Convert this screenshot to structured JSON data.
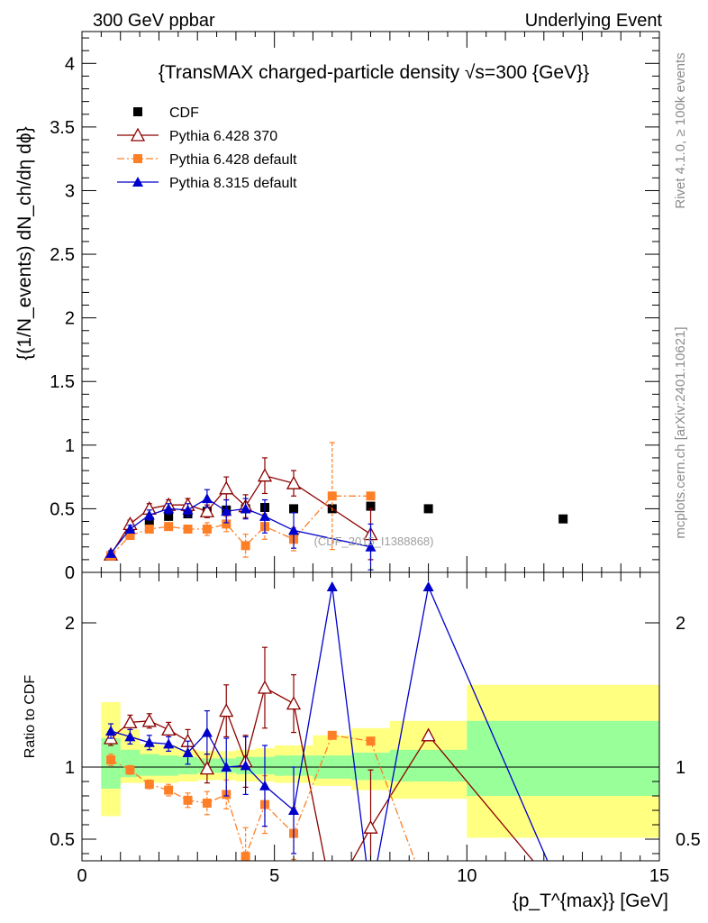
{
  "header": {
    "left": "300 GeV ppbar",
    "right": "Underlying Event"
  },
  "side_labels": {
    "rivet": "Rivet 4.1.0, ≥ 100k events",
    "mcplots": "mcplots.cern.ch [arXiv:2401.10621]"
  },
  "watermark": "(CDF_2015_I1388868)",
  "chart_data": [
    {
      "type": "line",
      "title": "{TransMAX charged-particle density √s=300 {GeV}}",
      "ylabel": "{(1/N_events) dN_ch/dη dϕ}",
      "xlim": [
        0,
        15
      ],
      "ylim": [
        0,
        4.25
      ],
      "yticks": [
        "0",
        "0.5",
        "1",
        "1.5",
        "2",
        "2.5",
        "3",
        "3.5",
        "4"
      ],
      "legend": [
        "CDF",
        "Pythia 6.428 370",
        "Pythia 6.428 default",
        "Pythia 8.315 default"
      ],
      "series": [
        {
          "name": "CDF",
          "color": "#000000",
          "marker": "square",
          "x": [
            0.75,
            1.25,
            1.75,
            2.25,
            2.75,
            3.25,
            3.75,
            4.25,
            4.75,
            5.5,
            6.5,
            7.5,
            9.0,
            12.5
          ],
          "y": [
            0.13,
            0.3,
            0.4,
            0.44,
            0.46,
            0.48,
            0.49,
            0.5,
            0.51,
            0.5,
            0.5,
            0.52,
            0.5,
            0.42
          ]
        },
        {
          "name": "Pythia 6.428 370",
          "color": "#8b0000",
          "marker": "open-triangle",
          "x": [
            0.75,
            1.25,
            1.75,
            2.25,
            2.75,
            3.25,
            3.75,
            4.25,
            4.75,
            5.5,
            7.5
          ],
          "y": [
            0.14,
            0.38,
            0.5,
            0.53,
            0.53,
            0.48,
            0.66,
            0.52,
            0.76,
            0.7,
            0.3
          ],
          "err": [
            0.02,
            0.03,
            0.04,
            0.04,
            0.05,
            0.05,
            0.09,
            0.09,
            0.14,
            0.1,
            0.2
          ]
        },
        {
          "name": "Pythia 6.428 default",
          "color": "#ff7f27",
          "marker": "square",
          "dash": "dashdot",
          "x": [
            0.75,
            1.25,
            1.75,
            2.25,
            2.75,
            3.25,
            3.75,
            4.25,
            4.75,
            5.5,
            6.5,
            7.5
          ],
          "y": [
            0.13,
            0.29,
            0.34,
            0.36,
            0.34,
            0.34,
            0.38,
            0.21,
            0.36,
            0.26,
            0.6,
            0.6
          ],
          "err": [
            0.02,
            0.02,
            0.02,
            0.03,
            0.03,
            0.05,
            0.06,
            0.09,
            0.1,
            0.09,
            0.42,
            0.0
          ]
        },
        {
          "name": "Pythia 8.315 default",
          "color": "#0000cc",
          "marker": "triangle",
          "x": [
            0.75,
            1.25,
            1.75,
            2.25,
            2.75,
            3.25,
            3.75,
            4.25,
            4.75,
            5.5,
            7.5
          ],
          "y": [
            0.15,
            0.34,
            0.45,
            0.5,
            0.49,
            0.58,
            0.48,
            0.5,
            0.44,
            0.33,
            0.2
          ],
          "err": [
            0.02,
            0.03,
            0.04,
            0.04,
            0.05,
            0.07,
            0.09,
            0.08,
            0.13,
            0.14,
            0.18
          ]
        }
      ]
    },
    {
      "type": "line",
      "ylabel": "Ratio to CDF",
      "xlabel": "{p_T^{max}} [GeV]",
      "xlim": [
        0,
        15
      ],
      "ylim": [
        0.35,
        2.35
      ],
      "xticks": [
        "0",
        "5",
        "10",
        "15"
      ],
      "yticks": [
        "0.5",
        "1",
        "2"
      ],
      "bands": {
        "edges": [
          0.5,
          1.0,
          1.5,
          2.0,
          2.5,
          3.0,
          3.5,
          4.0,
          4.5,
          5.0,
          6.0,
          7.0,
          8.0,
          10.0,
          15.0
        ],
        "green": [
          [
            0.85,
            1.2
          ],
          [
            0.93,
            1.12
          ],
          [
            0.94,
            1.09
          ],
          [
            0.94,
            1.08
          ],
          [
            0.95,
            1.07
          ],
          [
            0.96,
            1.06
          ],
          [
            0.96,
            1.06
          ],
          [
            0.95,
            1.07
          ],
          [
            0.95,
            1.07
          ],
          [
            0.94,
            1.08
          ],
          [
            0.92,
            1.08
          ],
          [
            0.91,
            1.1
          ],
          [
            0.9,
            1.12
          ],
          [
            0.8,
            1.32
          ]
        ],
        "yellow": [
          [
            0.66,
            1.45
          ],
          [
            0.89,
            1.26
          ],
          [
            0.89,
            1.16
          ],
          [
            0.89,
            1.15
          ],
          [
            0.9,
            1.12
          ],
          [
            0.91,
            1.11
          ],
          [
            0.91,
            1.11
          ],
          [
            0.9,
            1.12
          ],
          [
            0.9,
            1.13
          ],
          [
            0.89,
            1.15
          ],
          [
            0.87,
            1.22
          ],
          [
            0.84,
            1.27
          ],
          [
            0.78,
            1.32
          ],
          [
            0.51,
            1.57
          ]
        ]
      },
      "series": [
        {
          "name": "Pythia 6.428 370",
          "color": "#8b0000",
          "marker": "open-triangle",
          "x": [
            0.75,
            1.25,
            1.75,
            2.25,
            2.75,
            3.25,
            3.75,
            4.25,
            4.75,
            5.5,
            6.5,
            7.5,
            9.0,
            12.5
          ],
          "y": [
            1.2,
            1.31,
            1.32,
            1.26,
            1.18,
            0.99,
            1.39,
            1.04,
            1.55,
            1.44,
            0.1,
            0.58,
            1.22,
            0.1
          ],
          "err": [
            0.05,
            0.05,
            0.05,
            0.05,
            0.08,
            0.1,
            0.18,
            0.18,
            0.28,
            0.2,
            0.0,
            0.4,
            0.0,
            0.0
          ]
        },
        {
          "name": "Pythia 6.428 default",
          "color": "#ff7f27",
          "marker": "square",
          "dash": "dashdot",
          "x": [
            0.75,
            1.25,
            1.75,
            2.25,
            2.75,
            3.25,
            3.75,
            4.25,
            4.75,
            5.5,
            6.5,
            7.5,
            9.0
          ],
          "y": [
            1.05,
            0.98,
            0.88,
            0.84,
            0.77,
            0.75,
            0.81,
            0.38,
            0.74,
            0.54,
            1.22,
            1.18,
            0.1
          ],
          "err": [
            0.04,
            0.03,
            0.03,
            0.04,
            0.05,
            0.08,
            0.1,
            0.2,
            0.2,
            0.18,
            0.0,
            0.0,
            0.0
          ]
        },
        {
          "name": "Pythia 8.315 default",
          "color": "#0000cc",
          "marker": "triangle",
          "x": [
            0.75,
            1.25,
            1.75,
            2.25,
            2.75,
            3.25,
            3.75,
            4.25,
            4.75,
            5.5,
            6.5,
            7.5,
            9.0,
            12.5
          ],
          "y": [
            1.25,
            1.21,
            1.17,
            1.16,
            1.1,
            1.24,
            1.0,
            1.01,
            0.87,
            0.7,
            2.25,
            0.1,
            2.25,
            0.1
          ],
          "err": [
            0.05,
            0.05,
            0.05,
            0.05,
            0.08,
            0.15,
            0.2,
            0.2,
            0.28,
            0.3,
            0.0,
            0.0,
            0.0,
            0.0
          ]
        }
      ]
    }
  ]
}
